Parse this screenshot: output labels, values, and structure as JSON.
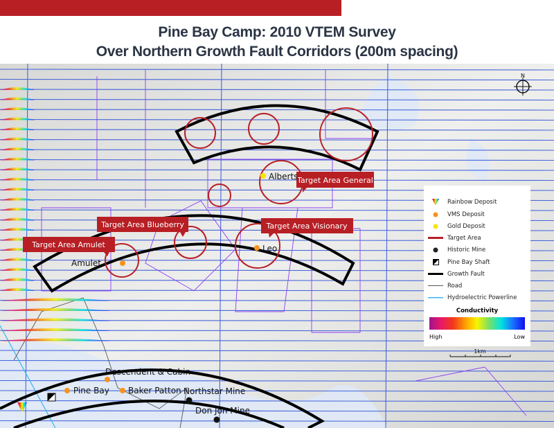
{
  "title": {
    "line1": "Pine Bay Camp: 2010 VTEM Survey",
    "line2": "Over Northern Growth Fault Corridors (200m spacing)"
  },
  "colors": {
    "brand_red": "#b71f25",
    "title": "#2a3444",
    "claims": "#8a3ff0",
    "flight_lines": "#2b4fd9",
    "target_area": "#b71f25",
    "vms": "#f7931e",
    "gold": "#f5e600"
  },
  "map": {
    "targets": [
      "Target Area General",
      "Target Area Blueberry",
      "Target Area Visionary",
      "Target Area Amulet"
    ],
    "deposits": {
      "alberts": "Alberts",
      "leo": "Leo",
      "amulet": "Amulet",
      "descendent": "Descendent & Cabin",
      "pine_bay": "Pine Bay",
      "baker_patton": "Baker Patton"
    },
    "mines": {
      "northstar": "Northstar Mine",
      "don_jon": "Don Jon Mine"
    },
    "north": "N",
    "scale": "1km"
  },
  "legend": {
    "items": [
      "Rainbow Deposit",
      "VMS Deposit",
      "Gold Deposit",
      "Target Area",
      "Historic Mine",
      "Pine Bay Shaft",
      "Growth Fault",
      "Road",
      "Hydroelectric Powerline"
    ],
    "conductivity_title": "Conductivity",
    "high": "High",
    "low": "Low"
  }
}
